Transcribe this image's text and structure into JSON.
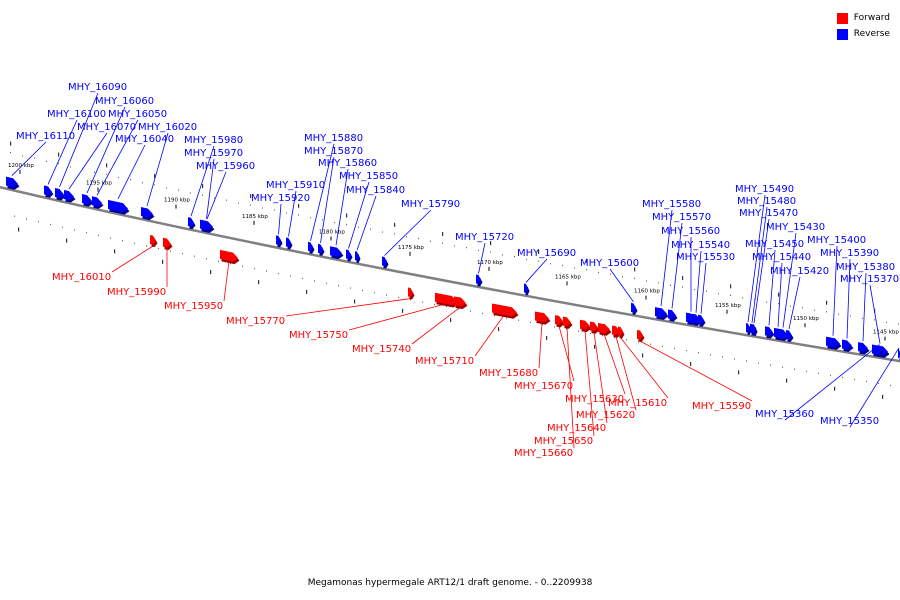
{
  "legend": {
    "forward_label": "Forward",
    "reverse_label": "Reverse",
    "forward_color": "#ff0000",
    "reverse_color": "#0000ff"
  },
  "caption": "Megamonas hypermegale ART12/1 draft genome. - 0..2209938",
  "ticks": [
    {
      "label": "1200 kbp"
    },
    {
      "label": "1195 kbp"
    },
    {
      "label": "1190 kbp"
    },
    {
      "label": "1185 kbp"
    },
    {
      "label": "1180 kbp"
    },
    {
      "label": "1175 kbp"
    },
    {
      "label": "1170 kbp"
    },
    {
      "label": "1165 kbp"
    },
    {
      "label": "1160 kbp"
    },
    {
      "label": "1155 kbp"
    },
    {
      "label": "1150 kbp"
    },
    {
      "label": "1145 kbp"
    }
  ],
  "genes": [
    {
      "id": "MHY_16110",
      "strand": "reverse"
    },
    {
      "id": "MHY_16100",
      "strand": "reverse"
    },
    {
      "id": "MHY_16090",
      "strand": "reverse"
    },
    {
      "id": "MHY_16070",
      "strand": "reverse"
    },
    {
      "id": "MHY_16060",
      "strand": "reverse"
    },
    {
      "id": "MHY_16050",
      "strand": "reverse"
    },
    {
      "id": "MHY_16040",
      "strand": "reverse"
    },
    {
      "id": "MHY_16020",
      "strand": "reverse"
    },
    {
      "id": "MHY_16010",
      "strand": "forward"
    },
    {
      "id": "MHY_15990",
      "strand": "forward"
    },
    {
      "id": "MHY_15980",
      "strand": "reverse"
    },
    {
      "id": "MHY_15970",
      "strand": "reverse"
    },
    {
      "id": "MHY_15960",
      "strand": "reverse"
    },
    {
      "id": "MHY_15950",
      "strand": "forward"
    },
    {
      "id": "MHY_15920",
      "strand": "reverse"
    },
    {
      "id": "MHY_15910",
      "strand": "reverse"
    },
    {
      "id": "MHY_15880",
      "strand": "reverse"
    },
    {
      "id": "MHY_15870",
      "strand": "reverse"
    },
    {
      "id": "MHY_15860",
      "strand": "reverse"
    },
    {
      "id": "MHY_15850",
      "strand": "reverse"
    },
    {
      "id": "MHY_15840",
      "strand": "reverse"
    },
    {
      "id": "MHY_15790",
      "strand": "reverse"
    },
    {
      "id": "MHY_15770",
      "strand": "forward"
    },
    {
      "id": "MHY_15750",
      "strand": "forward"
    },
    {
      "id": "MHY_15740",
      "strand": "forward"
    },
    {
      "id": "MHY_15720",
      "strand": "reverse"
    },
    {
      "id": "MHY_15710",
      "strand": "forward"
    },
    {
      "id": "MHY_15690",
      "strand": "reverse"
    },
    {
      "id": "MHY_15680",
      "strand": "forward"
    },
    {
      "id": "MHY_15670",
      "strand": "forward"
    },
    {
      "id": "MHY_15660",
      "strand": "forward"
    },
    {
      "id": "MHY_15650",
      "strand": "forward"
    },
    {
      "id": "MHY_15640",
      "strand": "forward"
    },
    {
      "id": "MHY_15630",
      "strand": "forward"
    },
    {
      "id": "MHY_15620",
      "strand": "forward"
    },
    {
      "id": "MHY_15610",
      "strand": "forward"
    },
    {
      "id": "MHY_15600",
      "strand": "reverse"
    },
    {
      "id": "MHY_15590",
      "strand": "forward"
    },
    {
      "id": "MHY_15580",
      "strand": "reverse"
    },
    {
      "id": "MHY_15570",
      "strand": "reverse"
    },
    {
      "id": "MHY_15560",
      "strand": "reverse"
    },
    {
      "id": "MHY_15540",
      "strand": "reverse"
    },
    {
      "id": "MHY_15530",
      "strand": "reverse"
    },
    {
      "id": "MHY_15490",
      "strand": "reverse"
    },
    {
      "id": "MHY_15480",
      "strand": "reverse"
    },
    {
      "id": "MHY_15470",
      "strand": "reverse"
    },
    {
      "id": "MHY_15450",
      "strand": "reverse"
    },
    {
      "id": "MHY_15440",
      "strand": "reverse"
    },
    {
      "id": "MHY_15430",
      "strand": "reverse"
    },
    {
      "id": "MHY_15420",
      "strand": "reverse"
    },
    {
      "id": "MHY_15400",
      "strand": "reverse"
    },
    {
      "id": "MHY_15390",
      "strand": "reverse"
    },
    {
      "id": "MHY_15380",
      "strand": "reverse"
    },
    {
      "id": "MHY_15370",
      "strand": "reverse"
    },
    {
      "id": "MHY_15360",
      "strand": "reverse"
    },
    {
      "id": "MHY_15350",
      "strand": "reverse"
    }
  ]
}
